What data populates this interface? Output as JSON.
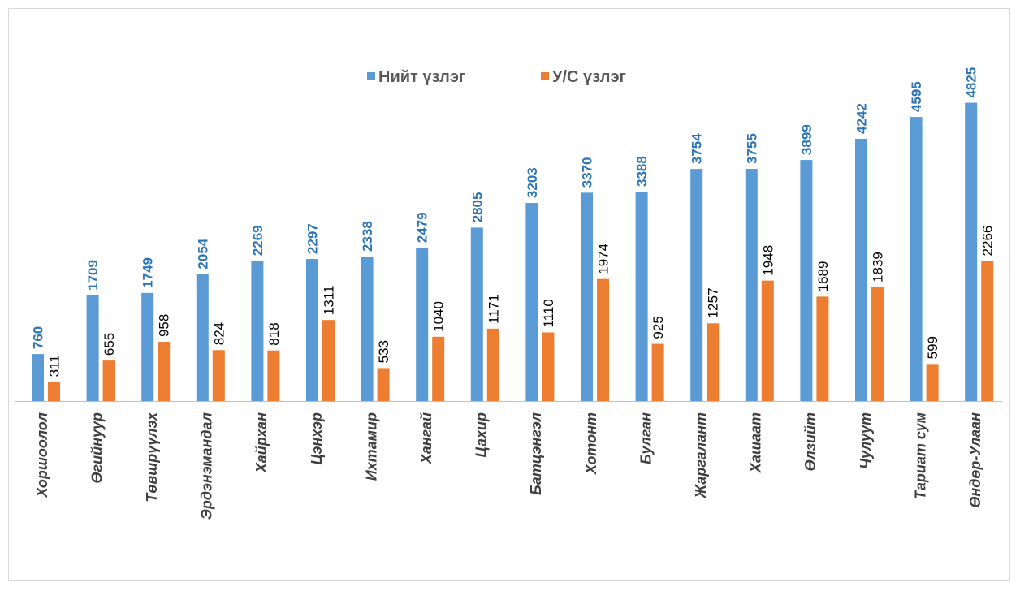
{
  "chart_data": {
    "type": "bar",
    "title": "",
    "xlabel": "",
    "ylabel": "",
    "ylim": [
      0,
      5200
    ],
    "grid": false,
    "legend_position": "top-center",
    "categories": [
      "Хоршоолол",
      "Өгийнуур",
      "Төвшрүүлэх",
      "Эрдэнэмандал",
      "Хайрхан",
      "Цэнхэр",
      "Ихтамир",
      "Хангай",
      "Цахир",
      "Батцэнгэл",
      "Хотонт",
      "Булган",
      "Жаргалант",
      "Хашаат",
      "Өлзийт",
      "Чулуут",
      "Тариат сум",
      "Өндөр-Улаан"
    ],
    "series": [
      {
        "name": "Нийт үзлэг",
        "color": "#5b9bd5",
        "label_color": "#2e75b6",
        "values": [
          760,
          1709,
          1749,
          2054,
          2269,
          2297,
          2338,
          2479,
          2805,
          3203,
          3370,
          3388,
          3754,
          3755,
          3899,
          4242,
          4595,
          4825
        ]
      },
      {
        "name": "У/С үзлэг",
        "color": "#ed7d31",
        "label_color": "#000000",
        "values": [
          311,
          655,
          958,
          824,
          818,
          1311,
          533,
          1040,
          1171,
          1110,
          1974,
          925,
          1257,
          1948,
          1689,
          1839,
          599,
          2266
        ]
      }
    ]
  }
}
